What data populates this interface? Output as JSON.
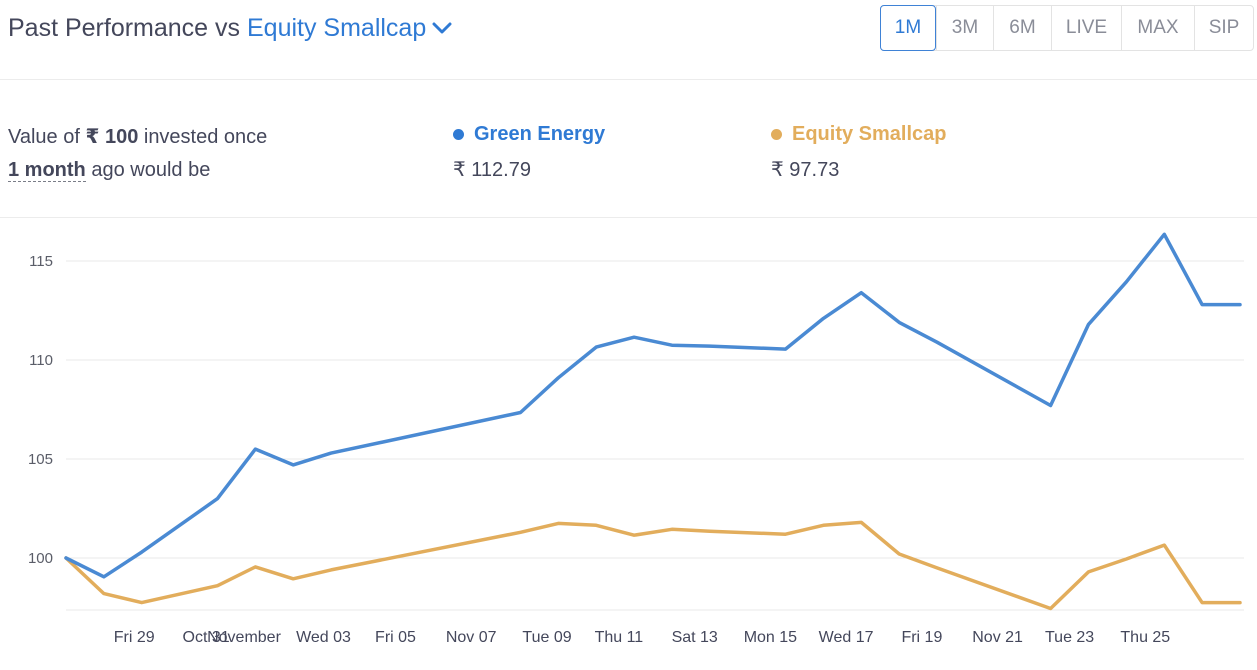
{
  "header": {
    "title_prefix": "Past Performance vs",
    "compare_fund": "Equity Smallcap",
    "tabs": [
      {
        "label": "1M",
        "active": true
      },
      {
        "label": "3M",
        "active": false
      },
      {
        "label": "6M",
        "active": false
      },
      {
        "label": "LIVE",
        "active": false
      },
      {
        "label": "MAX",
        "active": false
      },
      {
        "label": "SIP",
        "active": false
      }
    ]
  },
  "summary": {
    "line1_prefix": "Value of ",
    "amount": "₹ 100",
    "line1_suffix": " invested once",
    "period": "1 month",
    "line2_suffix": " ago would be",
    "funds": [
      {
        "name": "Green Energy",
        "value": "₹ 112.79",
        "color": "#2f7ad4"
      },
      {
        "name": "Equity Smallcap",
        "value": "₹ 97.73",
        "color": "#e2ad5c"
      }
    ]
  },
  "chart_data": {
    "type": "line",
    "ylim": [
      97.5,
      117.5
    ],
    "yticks": [
      100,
      105,
      110,
      115
    ],
    "grid": true,
    "x": [
      0,
      1,
      2,
      4,
      5,
      6,
      7,
      12,
      13,
      14,
      15,
      16,
      17,
      19,
      20,
      21,
      22,
      23,
      26,
      27,
      28,
      29,
      30,
      31
    ],
    "xtick_labels": [
      {
        "x": 1.8,
        "label": "Fri 29"
      },
      {
        "x": 3.7,
        "label": "Oct 31"
      },
      {
        "x": 4.7,
        "label": "November"
      },
      {
        "x": 6.8,
        "label": "Wed 03"
      },
      {
        "x": 8.7,
        "label": "Fri 05"
      },
      {
        "x": 10.7,
        "label": "Nov 07"
      },
      {
        "x": 12.7,
        "label": "Tue 09"
      },
      {
        "x": 14.6,
        "label": "Thu 11"
      },
      {
        "x": 16.6,
        "label": "Sat 13"
      },
      {
        "x": 18.6,
        "label": "Mon 15"
      },
      {
        "x": 20.6,
        "label": "Wed 17"
      },
      {
        "x": 22.6,
        "label": "Fri 19"
      },
      {
        "x": 24.6,
        "label": "Nov 21"
      },
      {
        "x": 26.5,
        "label": "Tue 23"
      },
      {
        "x": 28.5,
        "label": "Thu 25"
      }
    ],
    "series": [
      {
        "name": "Green Energy",
        "color": "#4a8ad3",
        "values": [
          100.0,
          99.05,
          100.3,
          103.0,
          105.5,
          104.7,
          105.3,
          107.35,
          109.1,
          110.65,
          111.15,
          110.75,
          110.7,
          110.55,
          112.1,
          113.4,
          111.9,
          110.9,
          107.7,
          111.8,
          113.95,
          116.35,
          112.8,
          112.8
        ]
      },
      {
        "name": "Equity Smallcap",
        "color": "#e2ad5c",
        "values": [
          100.0,
          98.2,
          97.75,
          98.6,
          99.55,
          98.95,
          99.4,
          101.3,
          101.75,
          101.65,
          101.15,
          101.45,
          101.35,
          101.2,
          101.65,
          101.8,
          100.2,
          99.5,
          97.45,
          99.3,
          99.95,
          100.65,
          97.75,
          97.75
        ]
      }
    ]
  }
}
